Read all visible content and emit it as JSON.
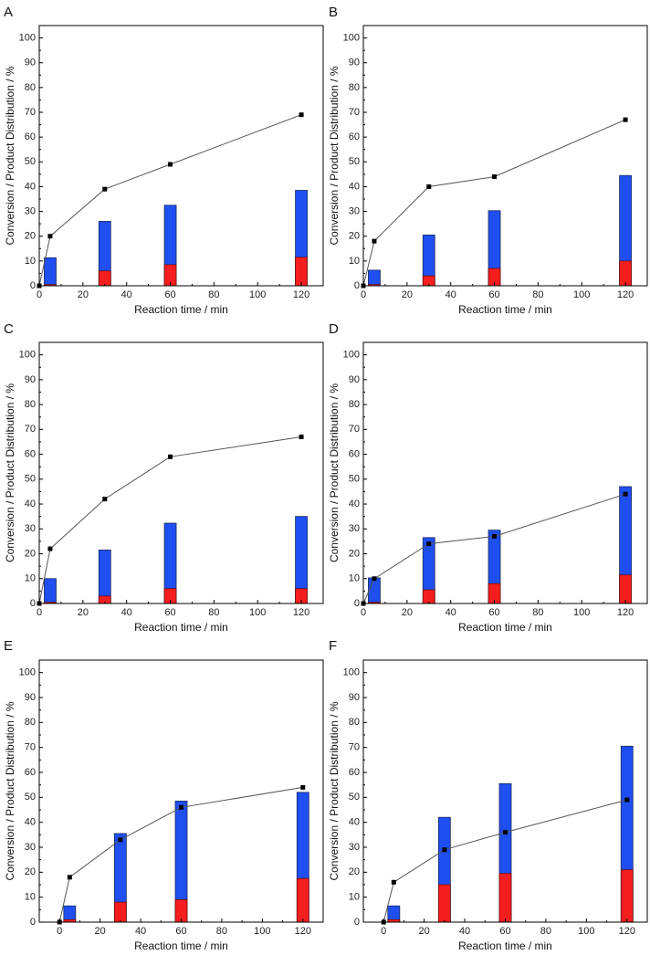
{
  "figure": {
    "colors": {
      "blue": "#1f4ff0",
      "red": "#f51e1e",
      "line": "#555555",
      "marker": "#000000",
      "axis": "#000000"
    }
  },
  "chart_data": [
    {
      "panel": "A",
      "type": "bar",
      "xlabel": "Reaction time / min",
      "ylabel": "Conversion / Product Distribution / %",
      "xlim": [
        0,
        130
      ],
      "ylim": [
        0,
        105
      ],
      "xticks": [
        0,
        20,
        40,
        60,
        80,
        100,
        120
      ],
      "yticks": [
        0,
        10,
        20,
        30,
        40,
        50,
        60,
        70,
        80,
        90,
        100
      ],
      "bar_x": [
        5,
        30,
        60,
        120
      ],
      "series": [
        {
          "name": "red",
          "values": [
            0.5,
            6,
            8.5,
            11.5
          ]
        },
        {
          "name": "blue_top",
          "values": [
            11.3,
            26,
            32.5,
            38.5
          ]
        }
      ],
      "conversion": {
        "x": [
          0,
          5,
          30,
          60,
          120
        ],
        "y": [
          0,
          20,
          39,
          49,
          69
        ]
      }
    },
    {
      "panel": "B",
      "type": "bar",
      "xlabel": "Reaction time / min",
      "ylabel": "Conversion / Product Distribution / %",
      "xlim": [
        0,
        130
      ],
      "ylim": [
        0,
        105
      ],
      "xticks": [
        0,
        20,
        40,
        60,
        80,
        100,
        120
      ],
      "yticks": [
        0,
        10,
        20,
        30,
        40,
        50,
        60,
        70,
        80,
        90,
        100
      ],
      "bar_x": [
        5,
        30,
        60,
        120
      ],
      "series": [
        {
          "name": "red",
          "values": [
            0.5,
            4,
            7,
            10
          ]
        },
        {
          "name": "blue_top",
          "values": [
            6.3,
            20.5,
            30.3,
            44.5
          ]
        }
      ],
      "conversion": {
        "x": [
          0,
          5,
          30,
          60,
          120
        ],
        "y": [
          0,
          18,
          40,
          44,
          67
        ]
      }
    },
    {
      "panel": "C",
      "type": "bar",
      "xlabel": "Reaction time / min",
      "ylabel": "Conversion / Product Distribution / %",
      "xlim": [
        0,
        130
      ],
      "ylim": [
        0,
        105
      ],
      "xticks": [
        0,
        20,
        40,
        60,
        80,
        100,
        120
      ],
      "yticks": [
        0,
        10,
        20,
        30,
        40,
        50,
        60,
        70,
        80,
        90,
        100
      ],
      "bar_x": [
        5,
        30,
        60,
        120
      ],
      "series": [
        {
          "name": "red",
          "values": [
            0.5,
            3,
            6,
            6
          ]
        },
        {
          "name": "blue_top",
          "values": [
            10,
            21.5,
            32.3,
            35
          ]
        }
      ],
      "conversion": {
        "x": [
          0,
          5,
          30,
          60,
          120
        ],
        "y": [
          0,
          22,
          42,
          59,
          67
        ]
      }
    },
    {
      "panel": "D",
      "type": "bar",
      "xlabel": "Reaction time / min",
      "ylabel": "Conversion / Product Distribution / %",
      "xlim": [
        0,
        130
      ],
      "ylim": [
        0,
        105
      ],
      "xticks": [
        0,
        20,
        40,
        60,
        80,
        100,
        120
      ],
      "yticks": [
        0,
        10,
        20,
        30,
        40,
        50,
        60,
        70,
        80,
        90,
        100
      ],
      "bar_x": [
        5,
        30,
        60,
        120
      ],
      "series": [
        {
          "name": "red",
          "values": [
            0.5,
            5.5,
            8,
            11.5
          ]
        },
        {
          "name": "blue_top",
          "values": [
            10.3,
            26.5,
            29.5,
            47
          ]
        }
      ],
      "conversion": {
        "x": [
          0,
          5,
          30,
          60,
          120
        ],
        "y": [
          0,
          10,
          24,
          27,
          44
        ]
      }
    },
    {
      "panel": "E",
      "type": "bar",
      "xlabel": "Reaction time / min",
      "ylabel": "Conversion / Product Distribution / %",
      "xlim": [
        -10,
        130
      ],
      "ylim": [
        0,
        105
      ],
      "xticks": [
        0,
        20,
        40,
        60,
        80,
        100,
        120
      ],
      "yticks": [
        0,
        10,
        20,
        30,
        40,
        50,
        60,
        70,
        80,
        90,
        100
      ],
      "bar_x": [
        5,
        30,
        60,
        120
      ],
      "series": [
        {
          "name": "red",
          "values": [
            1,
            8,
            9,
            17.5
          ]
        },
        {
          "name": "blue_top",
          "values": [
            6.5,
            35.5,
            48.5,
            52
          ]
        }
      ],
      "conversion": {
        "x": [
          0,
          5,
          30,
          60,
          120
        ],
        "y": [
          0,
          18,
          33,
          46,
          54
        ]
      }
    },
    {
      "panel": "F",
      "type": "bar",
      "xlabel": "Reaction time / min",
      "ylabel": "Conversion / Product Distribution / %",
      "xlim": [
        -10,
        130
      ],
      "ylim": [
        0,
        105
      ],
      "xticks": [
        0,
        20,
        40,
        60,
        80,
        100,
        120
      ],
      "yticks": [
        0,
        10,
        20,
        30,
        40,
        50,
        60,
        70,
        80,
        90,
        100
      ],
      "bar_x": [
        5,
        30,
        60,
        120
      ],
      "series": [
        {
          "name": "red",
          "values": [
            1,
            15,
            19.5,
            21
          ]
        },
        {
          "name": "blue_top",
          "values": [
            6.5,
            42,
            55.5,
            70.5
          ]
        }
      ],
      "conversion": {
        "x": [
          0,
          5,
          30,
          60,
          120
        ],
        "y": [
          0,
          16,
          29,
          36,
          49
        ]
      }
    }
  ]
}
